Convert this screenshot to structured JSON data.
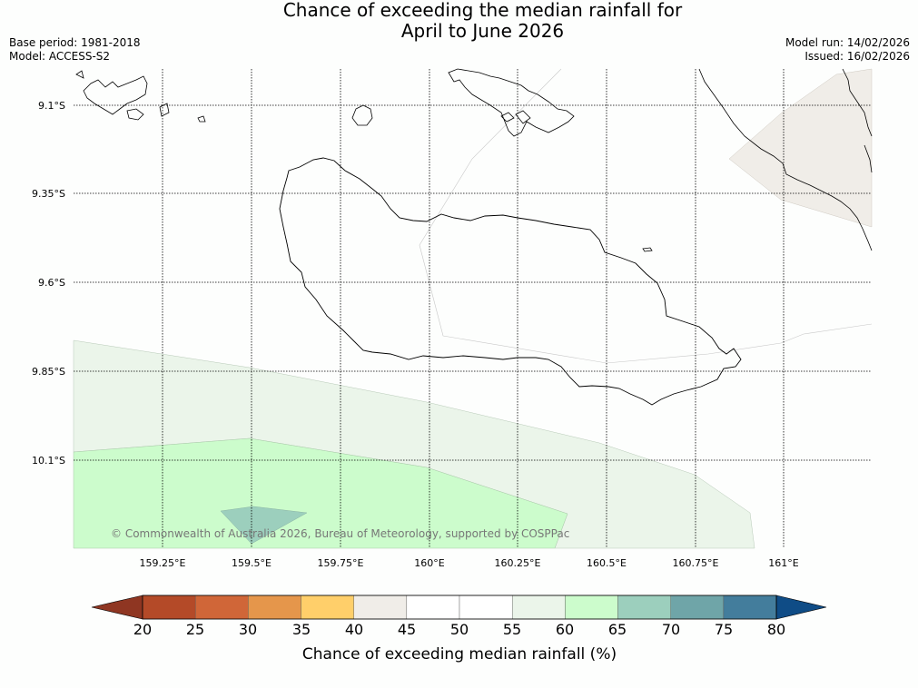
{
  "title": {
    "line1": "Chance of exceeding the median rainfall for",
    "line2": "April to June 2026"
  },
  "meta_left": {
    "base_period": "Base period: 1981-2018",
    "model": "Model: ACCESS-S2"
  },
  "meta_right": {
    "model_run": "Model run: 14/02/2026",
    "issued": "Issued: 16/02/2026"
  },
  "map": {
    "lat_labels": [
      "9.1°S",
      "9.35°S",
      "9.6°S",
      "9.85°S",
      "10.1°S"
    ],
    "lon_labels": [
      "159.25°E",
      "159.5°E",
      "159.75°E",
      "160°E",
      "160.25°E",
      "160.5°E",
      "160.75°E",
      "161°E"
    ],
    "copyright": "© Commonwealth of Australia 2026, Bureau of Meteorology, supported by COSPPac",
    "region_colors": {
      "band_40_45": "#f0ede8",
      "band_55_60": "#ebf5ea",
      "band_60_65": "#ccfccc",
      "band_65_70": "#9ccfbd"
    }
  },
  "colorbar": {
    "title": "Chance of exceeding median rainfall (%)",
    "ticks": [
      "20",
      "25",
      "30",
      "35",
      "40",
      "45",
      "50",
      "55",
      "60",
      "65",
      "70",
      "75",
      "80"
    ],
    "under_color": "#8f3622",
    "over_color": "#0f4c86",
    "colors": [
      "#b44a28",
      "#d06638",
      "#e5964b",
      "#ffcf6a",
      "#f0ede8",
      "#ffffff",
      "#ffffff",
      "#ebf5ea",
      "#ccfccc",
      "#9ccfbd",
      "#6fa5a8",
      "#437d9c"
    ]
  }
}
